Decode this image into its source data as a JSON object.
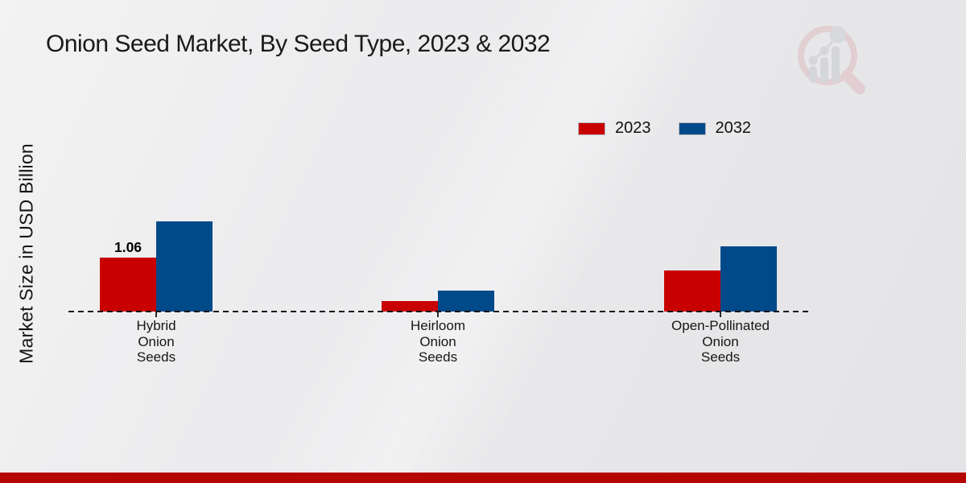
{
  "chart_data": {
    "type": "bar",
    "title": "Onion Seed Market, By Seed Type, 2023 & 2032",
    "ylabel": "Market Size in USD Billion",
    "xlabel": "",
    "categories": [
      "Hybrid Onion Seeds",
      "Heirloom Onion Seeds",
      "Open-Pollinated Onion Seeds"
    ],
    "series": [
      {
        "name": "2023",
        "color": "#c80000",
        "values": [
          1.06,
          0.21,
          0.81
        ]
      },
      {
        "name": "2032",
        "color": "#004a8a",
        "values": [
          1.77,
          0.41,
          1.28
        ]
      }
    ],
    "annotations": [
      {
        "text": "1.06",
        "series_index": 0,
        "category_index": 0
      }
    ],
    "ylim": [
      0,
      2.0
    ],
    "grid": false,
    "baseline_style": "dashed",
    "legend_position": "top-right"
  },
  "branding": {
    "logo_name": "market-research-future-magnifier-chart-logo",
    "accent_bar_color": "#b50500",
    "logo_ring_color": "#dfbcc1",
    "logo_bar_color": "#c8c9ce"
  }
}
